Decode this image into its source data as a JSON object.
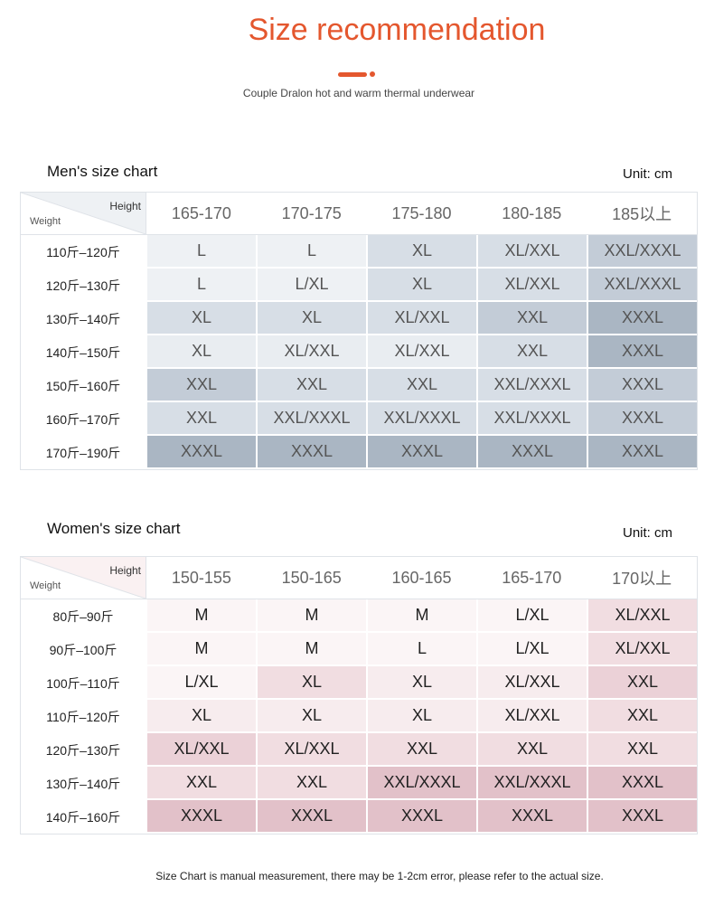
{
  "header": {
    "title": "Size recommendation",
    "subtitle": "Couple Dralon hot and warm thermal underwear"
  },
  "colors": {
    "accent": "#e4572e",
    "men_shades": [
      "#eef1f4",
      "#e9edf1",
      "#d7dee6",
      "#c3ccd7",
      "#aab6c3"
    ],
    "women_shades": [
      "#fbf5f6",
      "#f7ecee",
      "#f1dde1",
      "#ebd1d7",
      "#e2c1c9"
    ]
  },
  "men": {
    "title": "Men's size chart",
    "unit": "Unit: cm",
    "corner": {
      "height": "Height",
      "weight": "Weight"
    },
    "heights": [
      "165-170",
      "170-175",
      "175-180",
      "180-185",
      "185以上"
    ],
    "rows": [
      {
        "weight": "110斤–120斤",
        "sizes": [
          "L",
          "L",
          "XL",
          "XL/XXL",
          "XXL/XXXL"
        ],
        "shades": [
          0,
          0,
          2,
          2,
          3
        ]
      },
      {
        "weight": "120斤–130斤",
        "sizes": [
          "L",
          "L/XL",
          "XL",
          "XL/XXL",
          "XXL/XXXL"
        ],
        "shades": [
          0,
          0,
          2,
          2,
          3
        ]
      },
      {
        "weight": "130斤–140斤",
        "sizes": [
          "XL",
          "XL",
          "XL/XXL",
          "XXL",
          "XXXL"
        ],
        "shades": [
          2,
          2,
          2,
          3,
          4
        ]
      },
      {
        "weight": "140斤–150斤",
        "sizes": [
          "XL",
          "XL/XXL",
          "XL/XXL",
          "XXL",
          "XXXL"
        ],
        "shades": [
          1,
          1,
          1,
          2,
          4
        ]
      },
      {
        "weight": "150斤–160斤",
        "sizes": [
          "XXL",
          "XXL",
          "XXL",
          "XXL/XXXL",
          "XXXL"
        ],
        "shades": [
          3,
          2,
          2,
          2,
          3
        ]
      },
      {
        "weight": "160斤–170斤",
        "sizes": [
          "XXL",
          "XXL/XXXL",
          "XXL/XXXL",
          "XXL/XXXL",
          "XXXL"
        ],
        "shades": [
          2,
          2,
          2,
          2,
          3
        ]
      },
      {
        "weight": "170斤–190斤",
        "sizes": [
          "XXXL",
          "XXXL",
          "XXXL",
          "XXXL",
          "XXXL"
        ],
        "shades": [
          4,
          4,
          4,
          4,
          4
        ]
      }
    ]
  },
  "women": {
    "title": "Women's size chart",
    "unit": "Unit: cm",
    "corner": {
      "height": "Height",
      "weight": "Weight"
    },
    "heights": [
      "150-155",
      "150-165",
      "160-165",
      "165-170",
      "170以上"
    ],
    "rows": [
      {
        "weight": "80斤–90斤",
        "sizes": [
          "M",
          "M",
          "M",
          "L/XL",
          "XL/XXL"
        ],
        "shades": [
          0,
          0,
          0,
          0,
          2
        ]
      },
      {
        "weight": "90斤–100斤",
        "sizes": [
          "M",
          "M",
          "L",
          "L/XL",
          "XL/XXL"
        ],
        "shades": [
          0,
          0,
          0,
          0,
          2
        ]
      },
      {
        "weight": "100斤–110斤",
        "sizes": [
          "L/XL",
          "XL",
          "XL",
          "XL/XXL",
          "XXL"
        ],
        "shades": [
          0,
          2,
          1,
          1,
          3
        ]
      },
      {
        "weight": "110斤–120斤",
        "sizes": [
          "XL",
          "XL",
          "XL",
          "XL/XXL",
          "XXL"
        ],
        "shades": [
          1,
          1,
          1,
          1,
          2
        ]
      },
      {
        "weight": "120斤–130斤",
        "sizes": [
          "XL/XXL",
          "XL/XXL",
          "XXL",
          "XXL",
          "XXL"
        ],
        "shades": [
          3,
          2,
          2,
          2,
          2
        ]
      },
      {
        "weight": "130斤–140斤",
        "sizes": [
          "XXL",
          "XXL",
          "XXL/XXXL",
          "XXL/XXXL",
          "XXXL"
        ],
        "shades": [
          2,
          2,
          4,
          4,
          4
        ]
      },
      {
        "weight": "140斤–160斤",
        "sizes": [
          "XXXL",
          "XXXL",
          "XXXL",
          "XXXL",
          "XXXL"
        ],
        "shades": [
          4,
          4,
          4,
          4,
          4
        ]
      }
    ]
  },
  "footer": {
    "note": "Size Chart is manual measurement, there may be 1-2cm error, please refer to the actual size."
  }
}
